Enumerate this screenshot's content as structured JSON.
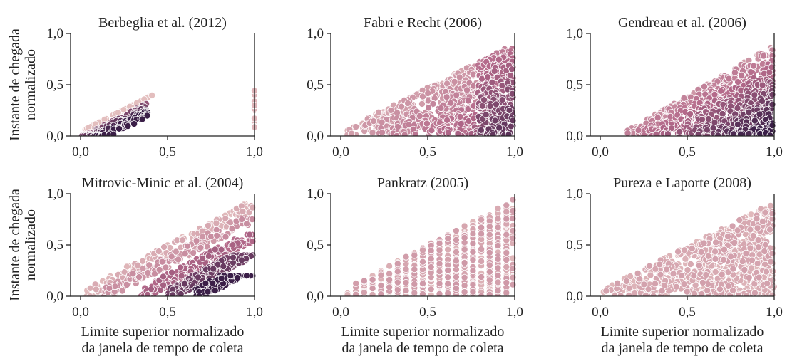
{
  "figure": {
    "ylabel": [
      "Instante de chegada",
      "normalizado"
    ],
    "xlabel": [
      "Limite superior normalizado",
      "da janela de tempo de coleta"
    ]
  },
  "axes": {
    "xticks": [
      "0,0",
      "0,5",
      "1,0"
    ],
    "yticks": [
      "0,0",
      "0,5",
      "1,0"
    ],
    "xticks_values": [
      0,
      0.5,
      1
    ],
    "yticks_values": [
      0,
      0.5,
      1
    ]
  },
  "colors": {
    "palette_light": "#e8c7c4",
    "palette_mid": "#b4698a",
    "palette_dark": "#3b1f48",
    "axis": "#222222"
  },
  "chart_data": [
    {
      "type": "scatter",
      "title": "Berbeglia et al. (2012)",
      "pattern": "berbeglia",
      "xlim": [
        0,
        1
      ],
      "ylim": [
        0,
        1
      ],
      "grid": false
    },
    {
      "type": "scatter",
      "title": "Fabri e Recht (2006)",
      "pattern": "fabri",
      "xlim": [
        0,
        1
      ],
      "ylim": [
        0,
        1
      ],
      "grid": false
    },
    {
      "type": "scatter",
      "title": "Gendreau et al. (2006)",
      "pattern": "gendreau",
      "xlim": [
        0,
        1
      ],
      "ylim": [
        0,
        1
      ],
      "grid": false
    },
    {
      "type": "scatter",
      "title": "Mitrovic-Minic et al. (2004)",
      "pattern": "mitrovic",
      "xlim": [
        0,
        1
      ],
      "ylim": [
        0,
        1
      ],
      "grid": false
    },
    {
      "type": "scatter",
      "title": "Pankratz (2005)",
      "pattern": "pankratz",
      "xlim": [
        0,
        1
      ],
      "ylim": [
        0,
        1
      ],
      "grid": false
    },
    {
      "type": "scatter",
      "title": "Pureza e Laporte (2008)",
      "pattern": "pureza",
      "xlim": [
        0,
        1
      ],
      "ylim": [
        0,
        1
      ],
      "grid": false
    }
  ]
}
